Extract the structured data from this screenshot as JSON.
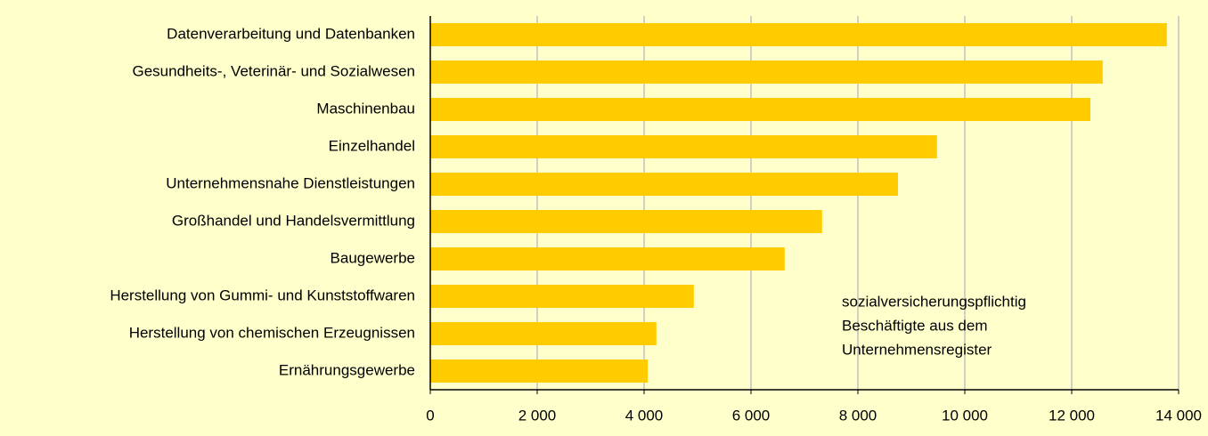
{
  "chart_data": {
    "type": "barh",
    "categories": [
      "Datenverarbeitung und Datenbanken",
      "Gesundheits-, Veterinär- und Sozialwesen",
      "Maschinenbau",
      "Einzelhandel",
      "Unternehmensnahe Dienstleistungen",
      "Großhandel und Handelsvermittlung",
      "Baugewerbe",
      "Herstellung von Gummi- und Kunststoffwaren",
      "Herstellung von chemischen Erzeugnissen",
      "Ernährungsgewerbe"
    ],
    "values": [
      13780,
      12580,
      12350,
      9480,
      8750,
      7330,
      6630,
      4930,
      4230,
      4070
    ],
    "color": "#ffcc00",
    "xlim": [
      0,
      14000
    ],
    "xticks": [
      0,
      {
        "value": 2000,
        "label": "2 000"
      },
      {
        "value": 4000,
        "label": "4 000"
      },
      {
        "value": 6000,
        "label": "6 000"
      },
      {
        "value": 8000,
        "label": "8 000"
      },
      {
        "value": 10000,
        "label": "10 000"
      },
      {
        "value": 12000,
        "label": "12 000"
      },
      {
        "value": 14000,
        "label": "14 000"
      }
    ],
    "grid": true,
    "annotation": [
      "sozialversicherungspflichtig",
      "Beschäftigte aus dem",
      "Unternehmensregister"
    ]
  }
}
